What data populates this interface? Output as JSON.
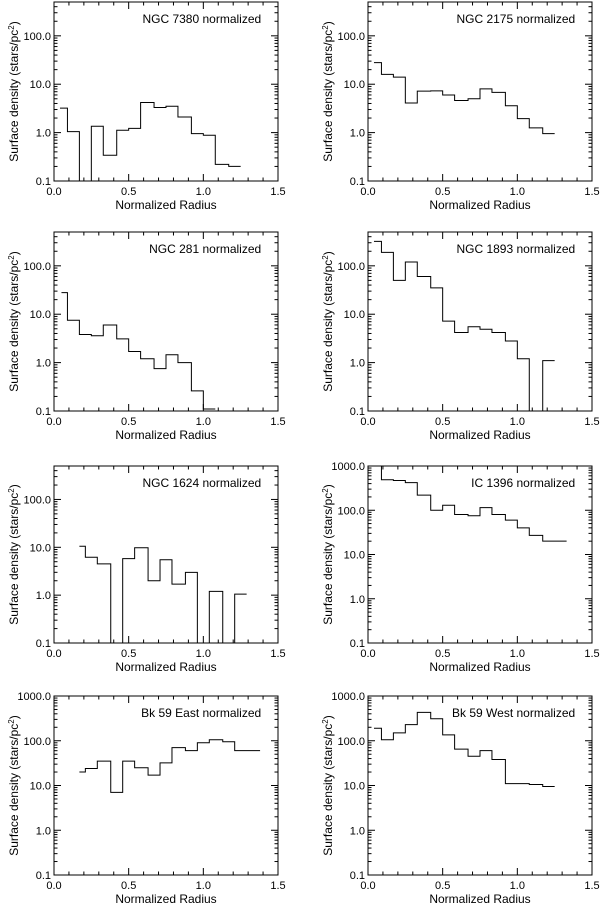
{
  "chart_data": [
    {
      "type": "line",
      "title": "NGC 7380 normalized",
      "xlabel": "Normalized Radius",
      "ylabel": "Surface density (stars/pc²)",
      "ylabel_main": "Surface density (stars/pc",
      "ylabel_sup": "2",
      "ylabel_tail": ")",
      "xlim": [
        0.0,
        1.5
      ],
      "ylim": [
        0.1,
        500.0
      ],
      "yscale": "log",
      "xticks": [
        "0.0",
        "0.5",
        "1.0",
        "1.5"
      ],
      "yticks": [
        "0.1",
        "1.0",
        "10.0",
        "100.0"
      ],
      "step_edges": [
        0.05,
        0.1,
        0.15,
        0.2,
        0.25,
        0.3,
        0.35,
        0.4,
        0.45,
        0.5,
        0.55,
        0.6,
        0.65,
        0.7,
        0.75,
        0.8,
        0.85,
        0.9,
        0.95,
        1.0,
        1.05,
        1.1,
        1.15,
        1.2,
        1.25,
        1.3,
        1.35,
        1.4,
        1.45,
        1.5
      ],
      "bins_x": [
        0.04,
        0.09,
        0.17,
        0.25,
        0.33,
        0.42,
        0.5,
        0.58,
        0.67,
        0.75,
        0.83,
        0.92,
        1.0,
        1.08,
        1.17,
        1.25,
        1.33,
        1.42,
        1.5
      ],
      "values": [
        3.2,
        1.05,
        0,
        1.35,
        0.34,
        1.12,
        1.22,
        4.2,
        3.3,
        3.5,
        2.1,
        0.95,
        0.88,
        0.22,
        0.2
      ]
    },
    {
      "type": "line",
      "title": "NGC 2175 normalized",
      "xlabel": "Normalized Radius",
      "ylabel": "Surface density (stars/pc²)",
      "ylabel_main": "Surface density (stars/pc",
      "ylabel_sup": "2",
      "ylabel_tail": ")",
      "xlim": [
        0.0,
        1.5
      ],
      "ylim": [
        0.1,
        500.0
      ],
      "yscale": "log",
      "xticks": [
        "0.0",
        "0.5",
        "1.0",
        "1.5"
      ],
      "yticks": [
        "0.1",
        "1.0",
        "10.0",
        "100.0"
      ],
      "bins_x": [
        0.04,
        0.09,
        0.17,
        0.25,
        0.33,
        0.42,
        0.5,
        0.58,
        0.67,
        0.75,
        0.83,
        0.92,
        1.0,
        1.08,
        1.17,
        1.25,
        1.33,
        1.42,
        1.5
      ],
      "values": [
        28,
        16,
        14,
        4.1,
        7.2,
        7.3,
        6.0,
        4.6,
        5.0,
        8.0,
        6.8,
        3.6,
        1.95,
        1.25,
        0.95
      ]
    },
    {
      "type": "line",
      "title": "NGC 281 normalized",
      "xlabel": "Normalized Radius",
      "ylabel": "Surface density (stars/pc²)",
      "ylabel_main": "Surface density (stars/pc",
      "ylabel_sup": "2",
      "ylabel_tail": ")",
      "xlim": [
        0.0,
        1.5
      ],
      "ylim": [
        0.1,
        500.0
      ],
      "yscale": "log",
      "xticks": [
        "0.0",
        "0.5",
        "1.0",
        "1.5"
      ],
      "yticks": [
        "0.1",
        "1.0",
        "10.0",
        "100.0"
      ],
      "bins_x": [
        0.05,
        0.09,
        0.17,
        0.25,
        0.33,
        0.42,
        0.5,
        0.58,
        0.67,
        0.75,
        0.83,
        0.92,
        1.0,
        1.08,
        1.17,
        1.25
      ],
      "values": [
        28,
        7.5,
        3.8,
        3.6,
        6.0,
        3.1,
        1.7,
        1.2,
        0.75,
        1.45,
        1.0,
        0.26,
        0.11
      ]
    },
    {
      "type": "line",
      "title": "NGC 1893 normalized",
      "xlabel": "Normalized Radius",
      "ylabel": "Surface density (stars/pc²)",
      "ylabel_main": "Surface density (stars/pc",
      "ylabel_sup": "2",
      "ylabel_tail": ")",
      "xlim": [
        0.0,
        1.5
      ],
      "ylim": [
        0.1,
        500.0
      ],
      "yscale": "log",
      "xticks": [
        "0.0",
        "0.5",
        "1.0",
        "1.5"
      ],
      "yticks": [
        "0.1",
        "1.0",
        "10.0",
        "100.0"
      ],
      "bins_x": [
        0.04,
        0.09,
        0.17,
        0.25,
        0.33,
        0.42,
        0.5,
        0.58,
        0.67,
        0.75,
        0.83,
        0.92,
        1.0,
        1.08,
        1.17,
        1.25,
        1.33,
        1.42,
        1.5
      ],
      "values": [
        320,
        190,
        50,
        120,
        60,
        35,
        7.2,
        4.2,
        5.5,
        4.9,
        4.2,
        2.8,
        1.2,
        0,
        1.1
      ]
    },
    {
      "type": "line",
      "title": "NGC 1624 normalized",
      "xlabel": "Normalized Radius",
      "ylabel": "Surface density (stars/pc²)",
      "ylabel_main": "Surface density (stars/pc",
      "ylabel_sup": "2",
      "ylabel_tail": ")",
      "xlim": [
        0.0,
        1.5
      ],
      "ylim": [
        0.1,
        500.0
      ],
      "yscale": "log",
      "xticks": [
        "0.0",
        "0.5",
        "1.0",
        "1.5"
      ],
      "yticks": [
        "0.1",
        "1.0",
        "10.0",
        "100.0"
      ],
      "bins_x": [
        0.17,
        0.21,
        0.29,
        0.38,
        0.46,
        0.54,
        0.63,
        0.71,
        0.79,
        0.88,
        0.96,
        1.04,
        1.13,
        1.21,
        1.29,
        1.38,
        1.46
      ],
      "values": [
        10.5,
        6.2,
        4.5,
        0,
        5.8,
        9.8,
        2.0,
        5.5,
        1.7,
        3.0,
        0,
        1.2,
        0,
        1.05
      ]
    },
    {
      "type": "line",
      "title": "IC 1396 normalized",
      "xlabel": "Normalized Radius",
      "ylabel": "Surface density (stars/pc²)",
      "ylabel_main": "Surface density (stars/pc",
      "ylabel_sup": "2",
      "ylabel_tail": ")",
      "xlim": [
        0.0,
        1.5
      ],
      "ylim": [
        0.1,
        1000.0
      ],
      "yscale": "log",
      "xticks": [
        "0.0",
        "0.5",
        "1.0",
        "1.5"
      ],
      "yticks": [
        "0.1",
        "1.0",
        "10.0",
        "100.0",
        "1000.0"
      ],
      "bins_x": [
        0.08,
        0.09,
        0.17,
        0.25,
        0.33,
        0.42,
        0.5,
        0.58,
        0.67,
        0.75,
        0.83,
        0.92,
        1.0,
        1.08,
        1.17,
        1.25,
        1.33,
        1.42,
        1.5
      ],
      "values": [
        1000,
        490,
        470,
        420,
        220,
        100,
        130,
        80,
        75,
        115,
        80,
        60,
        40,
        27,
        20,
        20
      ]
    },
    {
      "type": "line",
      "title": "Bk 59 East normalized",
      "xlabel": "Normalized Radius",
      "ylabel": "Surface density (stars/pc²)",
      "ylabel_main": "Surface density (stars/pc",
      "ylabel_sup": "2",
      "ylabel_tail": ")",
      "xlim": [
        0.0,
        1.5
      ],
      "ylim": [
        0.1,
        1000.0
      ],
      "yscale": "log",
      "xticks": [
        "0.0",
        "0.5",
        "1.0",
        "1.5"
      ],
      "yticks": [
        "0.1",
        "1.0",
        "10.0",
        "100.0",
        "1000.0"
      ],
      "bins_x": [
        0.17,
        0.21,
        0.29,
        0.38,
        0.46,
        0.54,
        0.63,
        0.71,
        0.79,
        0.88,
        0.96,
        1.04,
        1.13,
        1.21,
        1.29,
        1.38,
        1.46,
        1.5
      ],
      "values": [
        20,
        24,
        35,
        7.0,
        35,
        25,
        17,
        32,
        70,
        60,
        90,
        105,
        95,
        60,
        60
      ]
    },
    {
      "type": "line",
      "title": "Bk 59 West normalized",
      "xlabel": "Normalized Radius",
      "ylabel": "Surface density (stars/pc²)",
      "ylabel_main": "Surface density (stars/pc",
      "ylabel_sup": "2",
      "ylabel_tail": ")",
      "xlim": [
        0.0,
        1.5
      ],
      "ylim": [
        0.1,
        1000.0
      ],
      "yscale": "log",
      "xticks": [
        "0.0",
        "0.5",
        "1.0",
        "1.5"
      ],
      "yticks": [
        "0.1",
        "1.0",
        "10.0",
        "100.0",
        "1000.0"
      ],
      "bins_x": [
        0.04,
        0.09,
        0.17,
        0.25,
        0.33,
        0.42,
        0.5,
        0.58,
        0.67,
        0.75,
        0.83,
        0.92,
        1.0,
        1.08,
        1.17,
        1.25,
        1.33,
        1.42,
        1.5
      ],
      "values": [
        190,
        105,
        150,
        230,
        430,
        310,
        135,
        65,
        45,
        60,
        38,
        11,
        11,
        10.5,
        9.5
      ]
    }
  ]
}
